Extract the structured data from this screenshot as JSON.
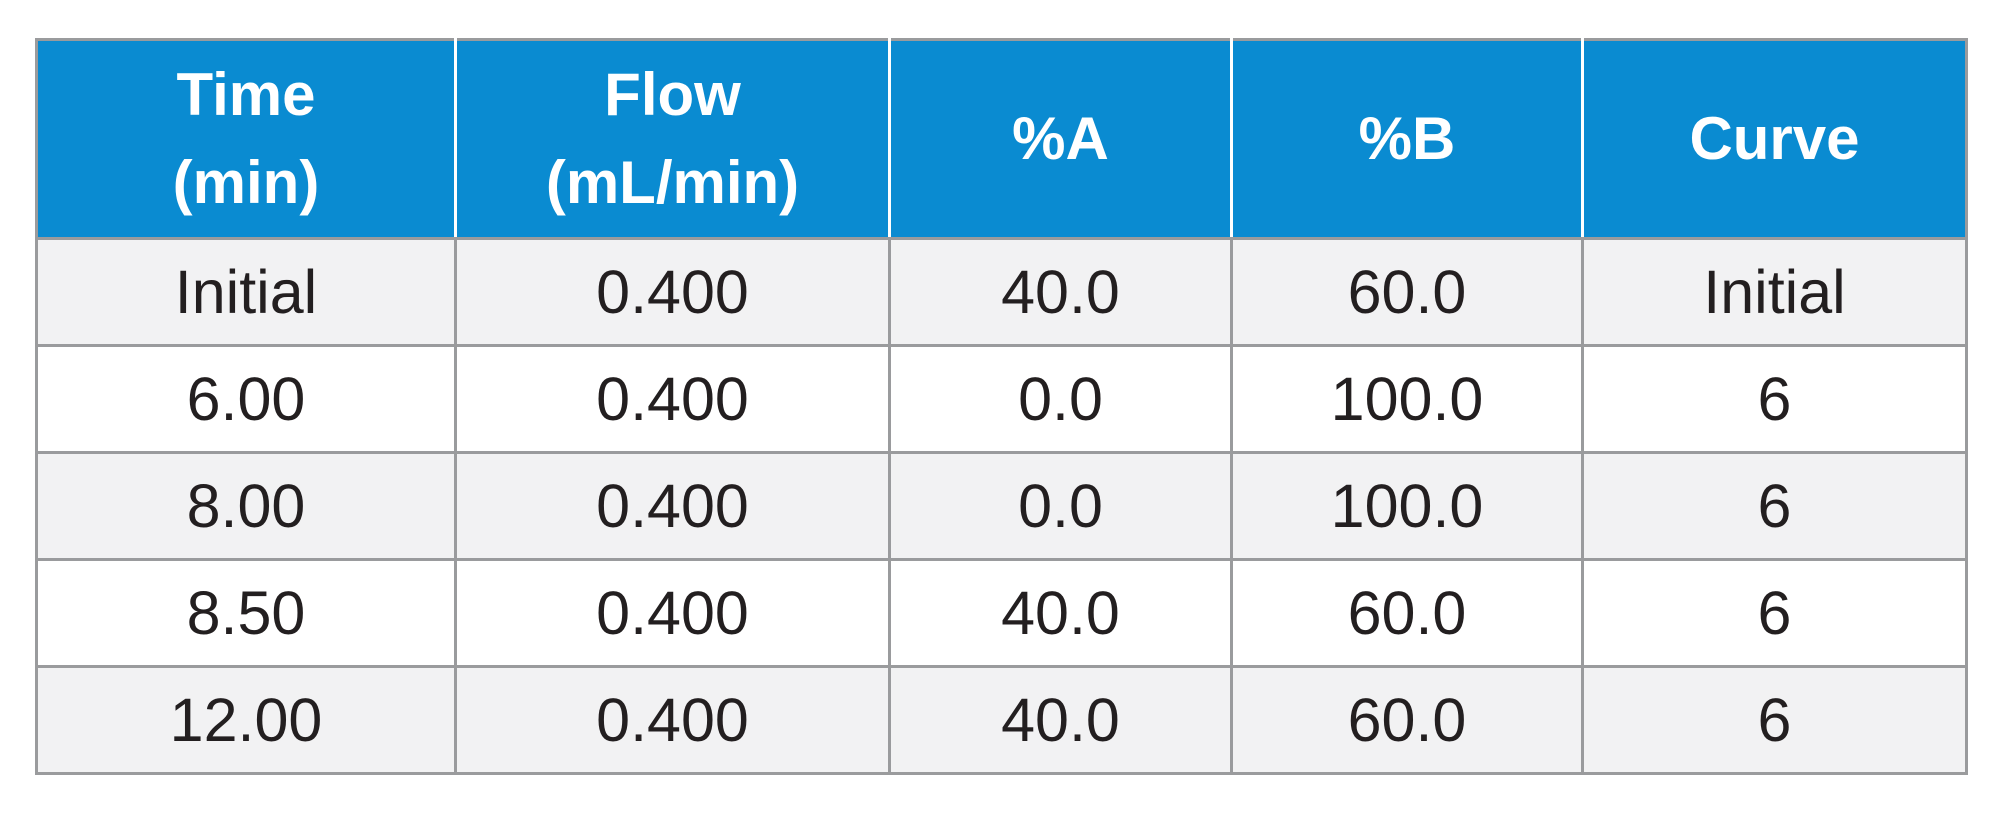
{
  "table": {
    "headers": [
      {
        "line1": "Time",
        "line2": "(min)"
      },
      {
        "line1": "Flow",
        "line2": "(mL/min)"
      },
      {
        "line1": "%A",
        "line2": ""
      },
      {
        "line1": "%B",
        "line2": ""
      },
      {
        "line1": "Curve",
        "line2": ""
      }
    ],
    "rows": [
      [
        "Initial",
        "0.400",
        "40.0",
        "60.0",
        "Initial"
      ],
      [
        "6.00",
        "0.400",
        "0.0",
        "100.0",
        "6"
      ],
      [
        "8.00",
        "0.400",
        "0.0",
        "100.0",
        "6"
      ],
      [
        "8.50",
        "0.400",
        "40.0",
        "60.0",
        "6"
      ],
      [
        "12.00",
        "0.400",
        "40.0",
        "60.0",
        "6"
      ]
    ],
    "colors": {
      "header_background": "#0a8bd1",
      "header_text": "#ffffff",
      "row_shade": "#f2f2f3",
      "border": "#9a9b9d",
      "body_text": "#231f20"
    }
  }
}
